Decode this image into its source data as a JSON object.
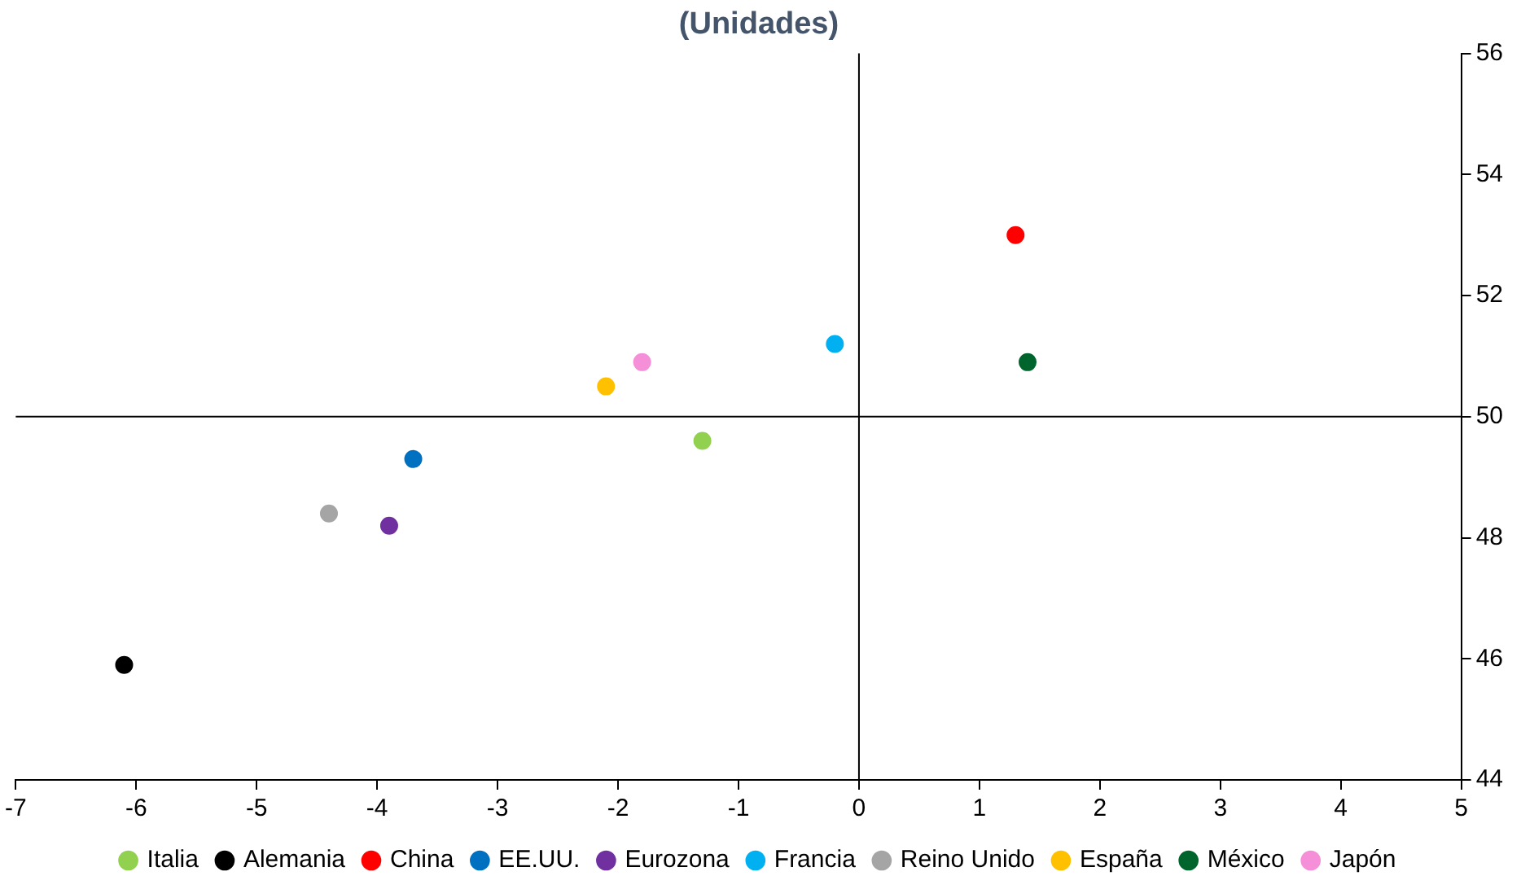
{
  "chart_data": {
    "type": "scatter",
    "title": "(Unidades)",
    "series": [
      {
        "name": "Italia",
        "color": "#92d050",
        "x": [
          -1.3
        ],
        "values": [
          49.6
        ]
      },
      {
        "name": "Alemania",
        "color": "#000000",
        "x": [
          -6.1
        ],
        "values": [
          45.9
        ]
      },
      {
        "name": "China",
        "color": "#ff0000",
        "x": [
          1.3
        ],
        "values": [
          53.0
        ]
      },
      {
        "name": "EE.UU.",
        "color": "#0070c0",
        "x": [
          -3.7
        ],
        "values": [
          49.3
        ]
      },
      {
        "name": "Eurozona",
        "color": "#7030a0",
        "x": [
          -3.9
        ],
        "values": [
          48.2
        ]
      },
      {
        "name": "Francia",
        "color": "#00b0f0",
        "x": [
          -0.2
        ],
        "values": [
          51.2
        ]
      },
      {
        "name": "Reino Unido",
        "color": "#a5a5a5",
        "x": [
          -4.4
        ],
        "values": [
          48.4
        ]
      },
      {
        "name": "España",
        "color": "#ffc000",
        "x": [
          -2.1
        ],
        "values": [
          50.5
        ]
      },
      {
        "name": "México",
        "color": "#00642d",
        "x": [
          1.4
        ],
        "values": [
          50.9
        ]
      },
      {
        "name": "Japón",
        "color": "#f48fd8",
        "x": [
          -1.8
        ],
        "values": [
          50.9
        ]
      }
    ],
    "xlim": [
      -7,
      5
    ],
    "xticks": [
      -7,
      -6,
      -5,
      -4,
      -3,
      -2,
      -1,
      0,
      1,
      2,
      3,
      4,
      5
    ],
    "ylim": [
      44,
      56
    ],
    "yticks": [
      44,
      46,
      48,
      50,
      52,
      54,
      56
    ],
    "ref_lines": [
      {
        "axis": "x",
        "value": 0,
        "color": "#000000"
      },
      {
        "axis": "y",
        "value": 50,
        "color": "#000000"
      }
    ],
    "grid": false,
    "legend": "bottom",
    "marker": "circle"
  }
}
